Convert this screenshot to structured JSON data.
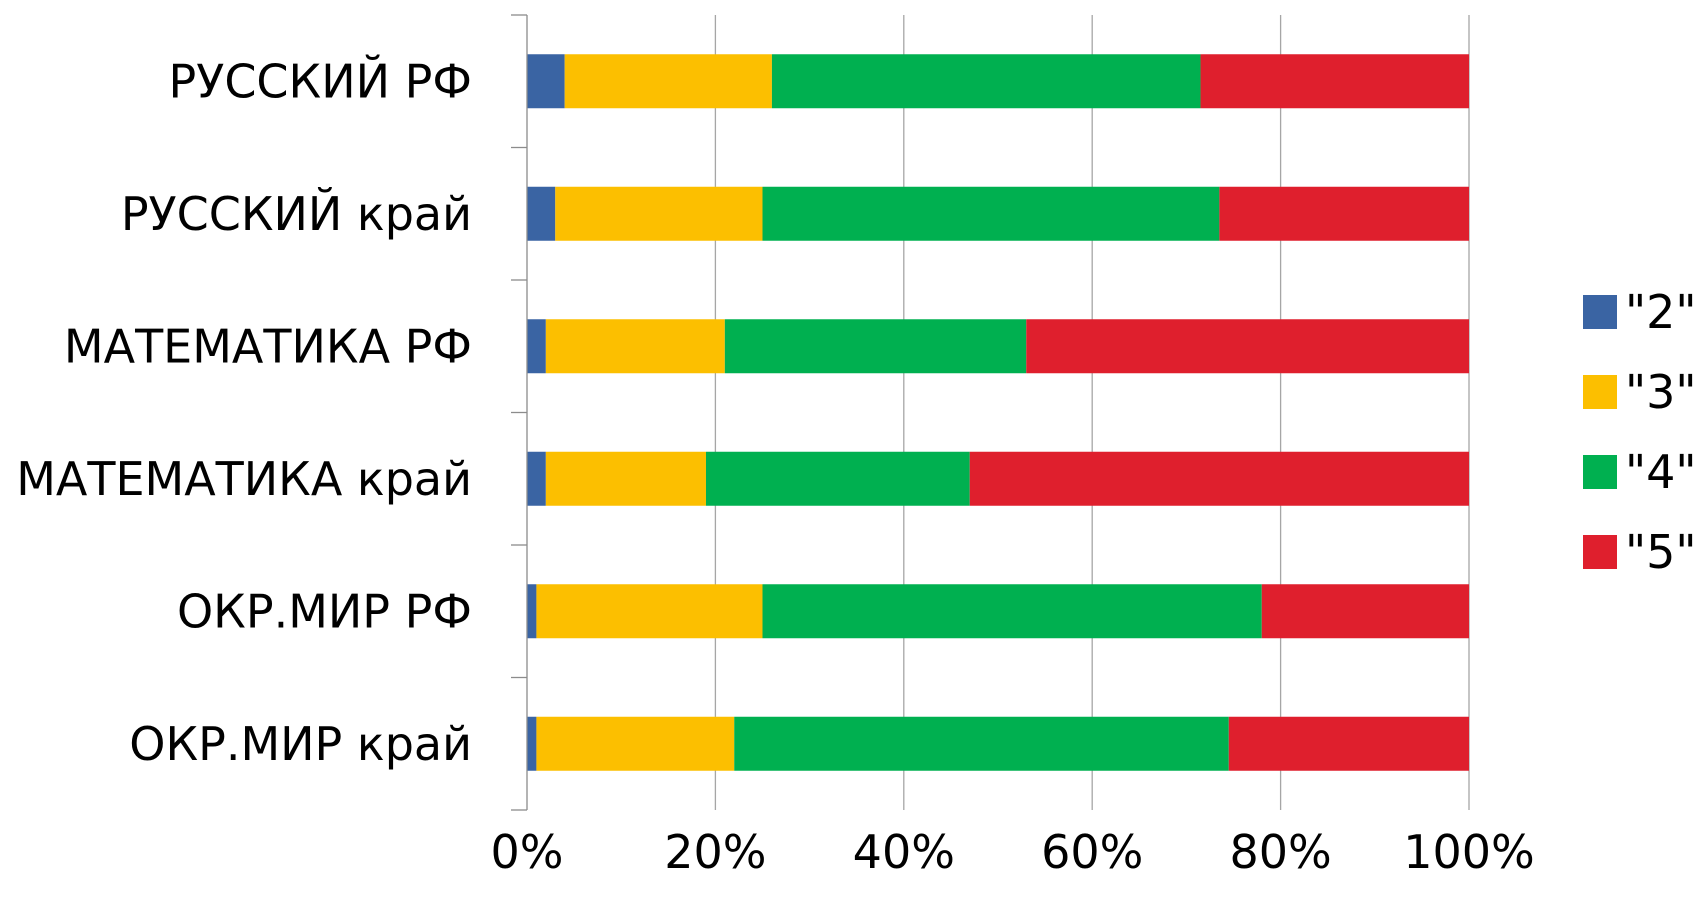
{
  "chart_data": {
    "type": "bar",
    "orientation": "horizontal",
    "stacked": "percent",
    "categories": [
      "РУССКИЙ РФ",
      "РУССКИЙ край",
      "МАТЕМАТИКА РФ",
      "МАТЕМАТИКА край",
      "ОКР.МИР РФ",
      "ОКР.МИР край"
    ],
    "series": [
      {
        "name": "\"2\"",
        "color": "#3a64a3",
        "values": [
          4,
          3,
          2,
          2,
          1,
          1
        ]
      },
      {
        "name": "\"3\"",
        "color": "#fcbf00",
        "values": [
          22,
          22,
          19,
          17,
          24,
          21
        ]
      },
      {
        "name": "\"4\"",
        "color": "#00b050",
        "values": [
          45.5,
          48.5,
          32,
          28,
          53,
          52.5
        ]
      },
      {
        "name": "\"5\"",
        "color": "#df1f2d",
        "values": [
          28.5,
          26.5,
          47,
          53,
          22,
          25.5
        ]
      }
    ],
    "x_ticks": [
      "0%",
      "20%",
      "40%",
      "60%",
      "80%",
      "100%"
    ],
    "xlim": [
      0,
      100
    ],
    "grid": true,
    "legend_position": "right",
    "title": "",
    "xlabel": "",
    "ylabel": ""
  }
}
